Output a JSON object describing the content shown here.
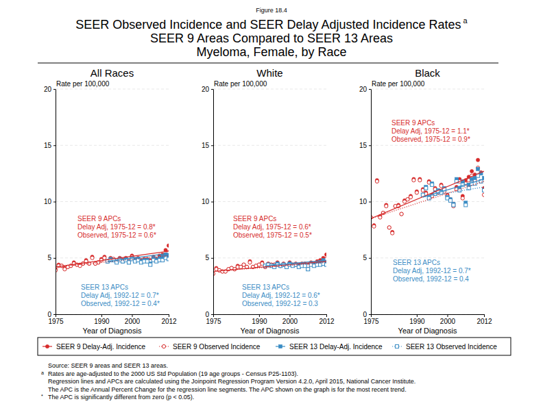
{
  "chart_data": {
    "type": "scatter",
    "figure_label": "Figure 18.4",
    "title": [
      "SEER Observed Incidence and SEER Delay Adjusted Incidence Rates",
      "SEER 9 Areas Compared to SEER 13 Areas",
      "Myeloma, Female, by Race"
    ],
    "title_mark": "a",
    "x_label": "Year of Diagnosis",
    "y_label": "Rate per 100,000",
    "xlim": [
      1975,
      2012
    ],
    "xticks": [
      1975,
      1990,
      2000,
      2012
    ],
    "ylim": [
      0,
      20
    ],
    "yticks": [
      0,
      5,
      10,
      15,
      20
    ],
    "grid": true,
    "legend": "bottom",
    "series": [
      {
        "name": "SEER 9 Delay-Adj. Incidence",
        "color": "#d62b2b",
        "marker": "circle",
        "line_style": "solid"
      },
      {
        "name": "SEER 9 Observed Incidence",
        "color": "#d62b2b",
        "marker": "circle-open",
        "line_style": "dotted"
      },
      {
        "name": "SEER 13 Delay-Adj. Incidence",
        "color": "#3a8cc4",
        "marker": "square",
        "line_style": "solid"
      },
      {
        "name": "SEER 13 Observed Incidence",
        "color": "#3a8cc4",
        "marker": "square-open",
        "line_style": "dotted"
      }
    ],
    "panels": [
      {
        "title": "All Races",
        "x": [
          1975,
          1976,
          1977,
          1978,
          1979,
          1980,
          1981,
          1982,
          1983,
          1984,
          1985,
          1986,
          1987,
          1988,
          1989,
          1990,
          1991,
          1992,
          1993,
          1994,
          1995,
          1996,
          1997,
          1998,
          1999,
          2000,
          2001,
          2002,
          2003,
          2004,
          2005,
          2006,
          2007,
          2008,
          2009,
          2010,
          2011,
          2012
        ],
        "values": [
          [
            4.0,
            4.4,
            4.3,
            4.1,
            4.2,
            4.3,
            4.6,
            4.4,
            4.4,
            4.5,
            4.8,
            4.5,
            5.1,
            4.5,
            4.6,
            4.9,
            5.1,
            4.7,
            5.0,
            4.9,
            4.8,
            5.0,
            4.8,
            5.0,
            4.7,
            5.2,
            4.9,
            5.0,
            4.8,
            4.9,
            4.9,
            4.8,
            5.1,
            4.9,
            5.2,
            5.3,
            5.7,
            6.1
          ],
          [
            3.9,
            4.3,
            4.3,
            4.0,
            4.2,
            4.3,
            4.5,
            4.4,
            4.3,
            4.5,
            4.7,
            4.5,
            5.0,
            4.5,
            4.6,
            4.8,
            5.0,
            4.7,
            4.9,
            4.9,
            4.8,
            4.9,
            4.8,
            4.9,
            4.7,
            5.1,
            4.8,
            4.9,
            4.7,
            4.8,
            4.8,
            4.7,
            4.9,
            4.8,
            5.0,
            5.0,
            5.3,
            5.5
          ],
          [
            null,
            null,
            null,
            null,
            null,
            null,
            null,
            null,
            null,
            null,
            null,
            null,
            null,
            null,
            null,
            null,
            null,
            4.7,
            4.9,
            4.8,
            4.7,
            4.9,
            4.7,
            4.9,
            4.6,
            5.0,
            4.8,
            4.9,
            4.7,
            4.8,
            4.8,
            4.5,
            5.0,
            4.8,
            5.0,
            5.1,
            5.3,
            5.2
          ],
          [
            null,
            null,
            null,
            null,
            null,
            null,
            null,
            null,
            null,
            null,
            null,
            null,
            null,
            null,
            null,
            null,
            null,
            4.7,
            4.8,
            4.8,
            4.6,
            4.8,
            4.7,
            4.8,
            4.6,
            4.9,
            4.7,
            4.8,
            4.6,
            4.7,
            4.7,
            4.4,
            4.8,
            4.7,
            4.8,
            4.8,
            5.0,
            4.9
          ]
        ],
        "trends": [
          {
            "x": [
              1975,
              2012
            ],
            "values": [
              4.2,
              5.6
            ]
          },
          {
            "x": [
              1975,
              2012
            ],
            "values": [
              4.2,
              5.2
            ]
          },
          {
            "x": [
              1992,
              2012
            ],
            "values": [
              4.7,
              5.4
            ]
          },
          {
            "x": [
              1992,
              2012
            ],
            "values": [
              4.7,
              5.1
            ]
          }
        ],
        "annotations": [
          {
            "color": "#d62b2b",
            "lines": [
              "SEER 9 APCs",
              "Delay Adj, 1975-12 = 0.8*",
              "Observed, 1975-12 = 0.6*"
            ]
          },
          {
            "color": "#3a8cc4",
            "lines": [
              "SEER 13 APCs",
              "Delay Adj, 1992-12 = 0.7*",
              "Observed, 1992-12 = 0.4*"
            ]
          }
        ]
      },
      {
        "title": "White",
        "x": [
          1975,
          1976,
          1977,
          1978,
          1979,
          1980,
          1981,
          1982,
          1983,
          1984,
          1985,
          1986,
          1987,
          1988,
          1989,
          1990,
          1991,
          1992,
          1993,
          1994,
          1995,
          1996,
          1997,
          1998,
          1999,
          2000,
          2001,
          2002,
          2003,
          2004,
          2005,
          2006,
          2007,
          2008,
          2009,
          2010,
          2011,
          2012
        ],
        "values": [
          [
            3.6,
            4.1,
            3.9,
            3.8,
            3.8,
            4.0,
            4.1,
            4.0,
            4.3,
            4.2,
            4.4,
            4.2,
            4.7,
            4.2,
            4.3,
            4.4,
            4.6,
            4.2,
            4.5,
            4.4,
            4.4,
            4.6,
            4.3,
            4.5,
            4.3,
            4.6,
            4.4,
            4.5,
            4.4,
            4.5,
            4.5,
            4.4,
            4.6,
            4.5,
            4.7,
            4.8,
            5.0,
            5.3
          ],
          [
            3.6,
            4.0,
            3.9,
            3.8,
            3.8,
            4.0,
            4.1,
            4.0,
            4.2,
            4.2,
            4.4,
            4.2,
            4.6,
            4.2,
            4.3,
            4.4,
            4.5,
            4.2,
            4.4,
            4.4,
            4.4,
            4.5,
            4.3,
            4.4,
            4.3,
            4.5,
            4.4,
            4.4,
            4.3,
            4.4,
            4.4,
            4.3,
            4.5,
            4.4,
            4.5,
            4.5,
            4.7,
            4.9
          ],
          [
            null,
            null,
            null,
            null,
            null,
            null,
            null,
            null,
            null,
            null,
            null,
            null,
            null,
            null,
            null,
            null,
            null,
            4.3,
            4.4,
            4.3,
            4.3,
            4.5,
            4.3,
            4.4,
            4.2,
            4.5,
            4.4,
            4.4,
            4.3,
            4.4,
            4.4,
            4.0,
            4.5,
            4.4,
            4.5,
            4.6,
            4.8,
            4.6
          ],
          [
            null,
            null,
            null,
            null,
            null,
            null,
            null,
            null,
            null,
            null,
            null,
            null,
            null,
            null,
            null,
            null,
            null,
            4.3,
            4.4,
            4.3,
            4.2,
            4.4,
            4.3,
            4.4,
            4.2,
            4.4,
            4.3,
            4.4,
            4.2,
            4.3,
            4.3,
            4.0,
            4.4,
            4.3,
            4.4,
            4.4,
            4.5,
            4.4
          ]
        ],
        "trends": [
          {
            "x": [
              1975,
              2012
            ],
            "values": [
              3.8,
              4.7
            ]
          },
          {
            "x": [
              1975,
              2012
            ],
            "values": [
              3.8,
              4.6
            ]
          },
          {
            "x": [
              1992,
              2012
            ],
            "values": [
              4.3,
              4.8
            ]
          },
          {
            "x": [
              1992,
              2012
            ],
            "values": [
              4.3,
              4.6
            ]
          }
        ],
        "annotations": [
          {
            "color": "#d62b2b",
            "lines": [
              "SEER 9 APCs",
              "Delay Adj, 1975-12 = 0.6*",
              "Observed, 1975-12 = 0.5*"
            ]
          },
          {
            "color": "#3a8cc4",
            "lines": [
              "SEER 13 APCs",
              "Delay Adj, 1992-12 = 0.6*",
              "Observed, 1992-12 = 0.3"
            ]
          }
        ]
      },
      {
        "title": "Black",
        "x": [
          1975,
          1976,
          1977,
          1978,
          1979,
          1980,
          1981,
          1982,
          1983,
          1984,
          1985,
          1986,
          1987,
          1988,
          1989,
          1990,
          1991,
          1992,
          1993,
          1994,
          1995,
          1996,
          1997,
          1998,
          1999,
          2000,
          2001,
          2002,
          2003,
          2004,
          2005,
          2006,
          2007,
          2008,
          2009,
          2010,
          2011,
          2012
        ],
        "values": [
          [
            8.6,
            7.9,
            11.9,
            8.7,
            9.0,
            9.7,
            7.7,
            7.3,
            9.6,
            9.7,
            8.9,
            10.1,
            10.2,
            10.5,
            12.0,
            10.9,
            12.0,
            11.1,
            10.8,
            11.8,
            10.6,
            11.2,
            10.9,
            11.5,
            11.0,
            10.6,
            10.2,
            9.8,
            11.3,
            12.0,
            10.5,
            11.9,
            12.2,
            12.7,
            12.4,
            13.7,
            12.6,
            11.2
          ],
          [
            8.6,
            7.8,
            11.8,
            8.6,
            9.0,
            9.6,
            7.7,
            7.2,
            9.6,
            9.6,
            8.9,
            10.0,
            10.2,
            10.4,
            11.9,
            10.8,
            11.9,
            11.0,
            10.7,
            11.7,
            10.5,
            11.1,
            10.8,
            11.4,
            10.9,
            10.5,
            10.1,
            9.6,
            11.1,
            11.8,
            10.3,
            11.6,
            11.9,
            12.3,
            11.9,
            13.0,
            11.8,
            10.6
          ],
          [
            null,
            null,
            null,
            null,
            null,
            null,
            null,
            null,
            null,
            null,
            null,
            null,
            null,
            null,
            null,
            null,
            null,
            10.6,
            11.3,
            10.4,
            11.6,
            10.8,
            11.0,
            10.9,
            11.2,
            10.4,
            10.2,
            9.8,
            12.0,
            11.2,
            11.8,
            9.9,
            11.5,
            12.0,
            12.1,
            12.9,
            12.5,
            12.1
          ],
          [
            null,
            null,
            null,
            null,
            null,
            null,
            null,
            null,
            null,
            null,
            null,
            null,
            null,
            null,
            null,
            null,
            null,
            10.6,
            11.2,
            10.3,
            11.5,
            10.7,
            10.9,
            10.8,
            11.1,
            10.3,
            10.1,
            9.7,
            11.8,
            11.0,
            11.5,
            9.7,
            11.2,
            11.6,
            11.6,
            12.3,
            11.8,
            11.0
          ]
        ],
        "trends": [
          {
            "x": [
              1975,
              2012
            ],
            "values": [
              8.5,
              12.7
            ]
          },
          {
            "x": [
              1975,
              2012
            ],
            "values": [
              8.5,
              11.8
            ]
          },
          {
            "x": [
              1992,
              2012
            ],
            "values": [
              10.4,
              12.0
            ]
          },
          {
            "x": [
              1992,
              2012
            ],
            "values": [
              10.4,
              11.3
            ]
          }
        ],
        "annotations": [
          {
            "color": "#d62b2b",
            "lines": [
              "SEER 9 APCs",
              "Delay Adj, 1975-12 = 1.1*",
              "Observed, 1975-12 = 0.9*"
            ]
          },
          {
            "color": "#3a8cc4",
            "lines": [
              "SEER 13 APCs",
              "Delay Adj, 1992-12 = 0.7*",
              "Observed, 1992-12 = 0.4"
            ]
          }
        ]
      }
    ],
    "notes": [
      {
        "text": "Source: SEER 9 areas and SEER 13 areas."
      },
      {
        "mark": "a",
        "text": "Rates are age-adjusted to the 2000 US Std Population (19 age groups - Census P25-1103)."
      },
      {
        "text": "Regression lines and APCs are calculated using the Joinpoint Regression Program Version 4.2.0, April 2015, National Cancer Institute."
      },
      {
        "text": "The APC is the Annual Percent Change for the regression line segments. The APC shown on the graph is for the most recent trend."
      },
      {
        "mark": "*",
        "text": "The APC is significantly different from zero (p < 0.05)."
      }
    ]
  }
}
